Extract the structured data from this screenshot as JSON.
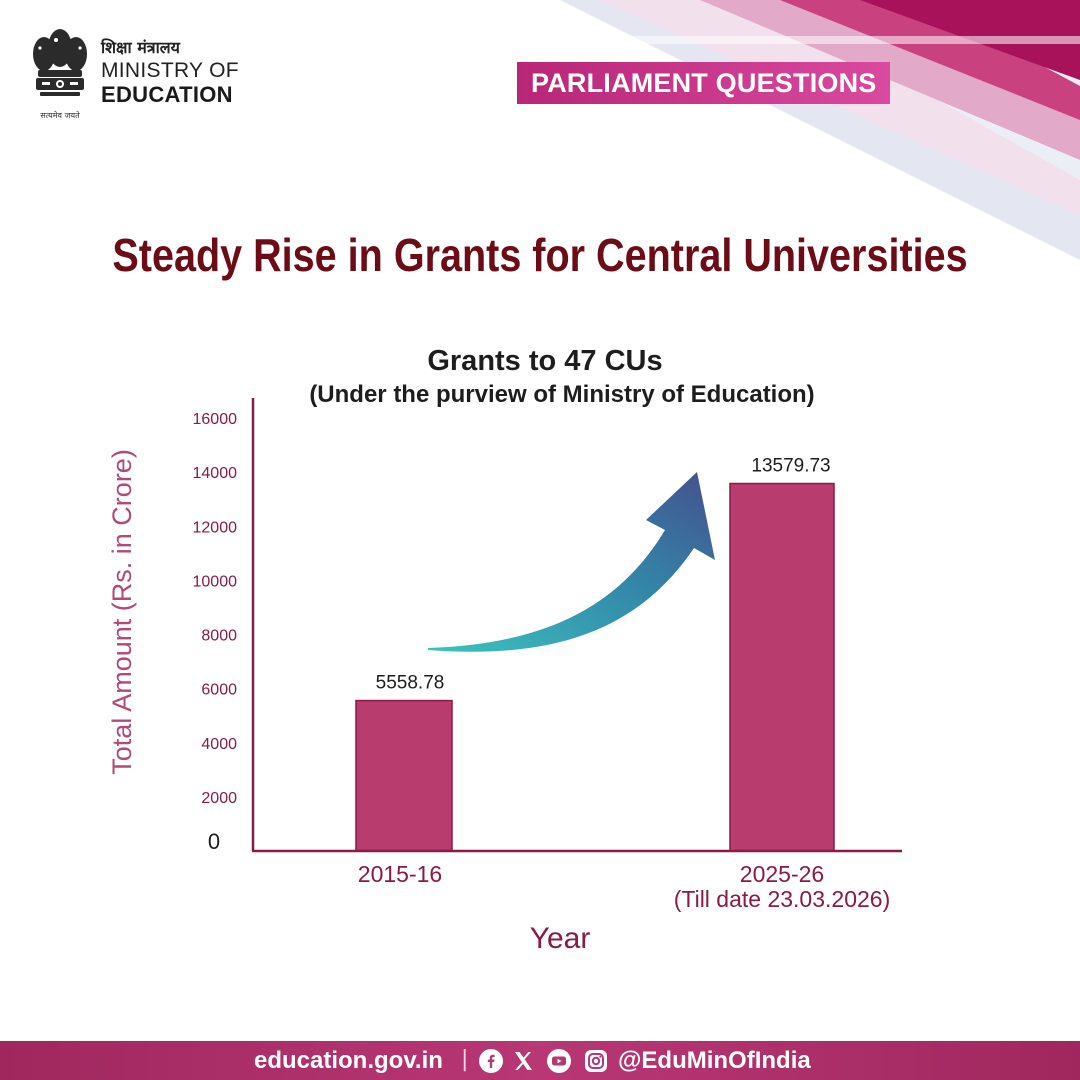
{
  "header": {
    "ministry_hindi": "शिक्षा मंत्रालय",
    "ministry_line1": "MINISTRY OF",
    "ministry_line2": "EDUCATION",
    "motto": "सत्यमेव जयते",
    "banner": "PARLIAMENT QUESTIONS"
  },
  "headline": "Steady Rise in Grants for Central Universities",
  "chart_data": {
    "type": "bar",
    "title": "Grants to 47 CUs",
    "subtitle": "(Under the purview of Ministry of Education)",
    "xlabel": "Year",
    "ylabel": "Total Amount (Rs. in Crore)",
    "categories": [
      "2015-16",
      "2025-26"
    ],
    "category_sublabels": [
      "",
      "(Till date 23.03.2026)"
    ],
    "values": [
      5558.78,
      13579.73
    ],
    "value_labels": [
      "5558.78",
      "13579.73"
    ],
    "ylim": [
      0,
      16000
    ],
    "yticks": [
      0,
      2000,
      4000,
      6000,
      8000,
      10000,
      12000,
      14000,
      16000
    ],
    "grid": false,
    "bar_color": "#b83c6e",
    "annotation": "rising-arrow"
  },
  "colors": {
    "accent": "#b83c6e",
    "headline": "#6b0c16",
    "axis_label": "#b04a78",
    "tick_label": "#8a1a46",
    "banner": "#c12f84"
  },
  "footer": {
    "site": "education.gov.in",
    "separator": "|",
    "social_icons": [
      "facebook-icon",
      "x-icon",
      "youtube-icon",
      "instagram-icon"
    ],
    "handle": "@EduMinOfIndia"
  }
}
